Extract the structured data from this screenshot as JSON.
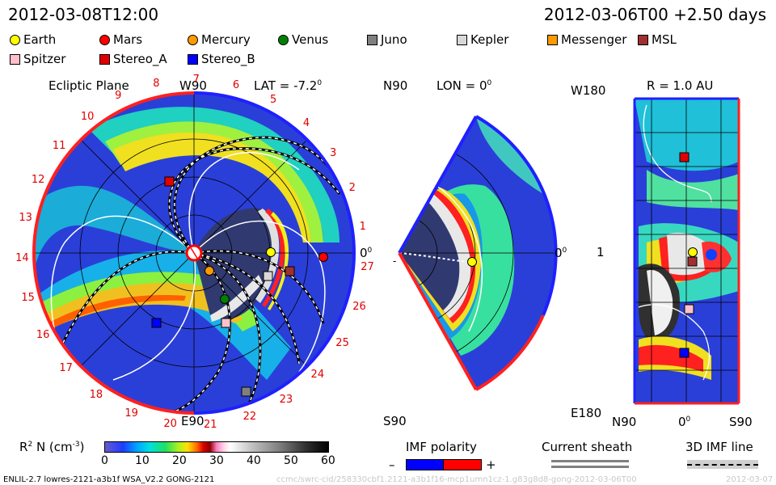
{
  "header": {
    "left_time": "2012-03-08T12:00",
    "right_time": "2012-03-06T00 +2.50 days"
  },
  "legend": [
    {
      "label": "Earth",
      "shape": "circle",
      "color": "#ffff00"
    },
    {
      "label": "Mars",
      "shape": "circle",
      "color": "#ff0000"
    },
    {
      "label": "Mercury",
      "shape": "circle",
      "color": "#ff9900"
    },
    {
      "label": "Venus",
      "shape": "circle",
      "color": "#008000"
    },
    {
      "label": "Juno",
      "shape": "square",
      "color": "#808080"
    },
    {
      "label": "Kepler",
      "shape": "square",
      "color": "#d8d8d8"
    },
    {
      "label": "Messenger",
      "shape": "square",
      "color": "#ff9900"
    },
    {
      "label": "MSL",
      "shape": "square",
      "color": "#a03030"
    },
    {
      "label": "Spitzer",
      "shape": "square",
      "color": "#ffc0cb"
    },
    {
      "label": "Stereo_A",
      "shape": "square",
      "color": "#e00000"
    },
    {
      "label": "Stereo_B",
      "shape": "square",
      "color": "#0000ff"
    }
  ],
  "ecliptic": {
    "title": "Ecliptic Plane",
    "w90": "W90",
    "e90": "E90",
    "lat": "LAT = -7.2",
    "lat_sup": "0",
    "zero": "0",
    "zero_sup": "0",
    "hours": [
      "1",
      "2",
      "3",
      "4",
      "5",
      "6",
      "7",
      "8",
      "9",
      "10",
      "11",
      "12",
      "13",
      "14",
      "15",
      "16",
      "17",
      "18",
      "19",
      "20",
      "21",
      "22",
      "23",
      "24",
      "25",
      "26",
      "27"
    ]
  },
  "meridional": {
    "n90": "N90",
    "s90": "S90",
    "lon": "LON = 0",
    "lon_sup": "0",
    "zero": "0",
    "zero_sup": "0"
  },
  "radial": {
    "title": "R = 1.0 AU",
    "w180": "W180",
    "e180": "E180",
    "one": "1",
    "n90": "N90",
    "s90": "S90",
    "zero": "0",
    "zero_sup": "0"
  },
  "colorbar": {
    "label": "R",
    "label_sup": "2",
    "label_rest": " N (cm",
    "label_exp": "-3",
    "label_end": ")",
    "ticks": [
      "0",
      "10",
      "20",
      "30",
      "40",
      "50",
      "60"
    ]
  },
  "bottom": {
    "imf_polarity": "IMF polarity",
    "minus": "–",
    "plus": "+",
    "current_sheath": "Current sheath",
    "imf_line": "3D IMF line"
  },
  "footer": {
    "left": "ENLIL-2.7 lowres-2121-a3b1f WSA_V2.2 GONG-2121",
    "right": "ccmc/swrc-cid/258330cbf1.2121-a3b1f16-mcp1umn1cz-1.g83g8d8-gong-2012-03-06T00",
    "date": "2012-03-07"
  }
}
